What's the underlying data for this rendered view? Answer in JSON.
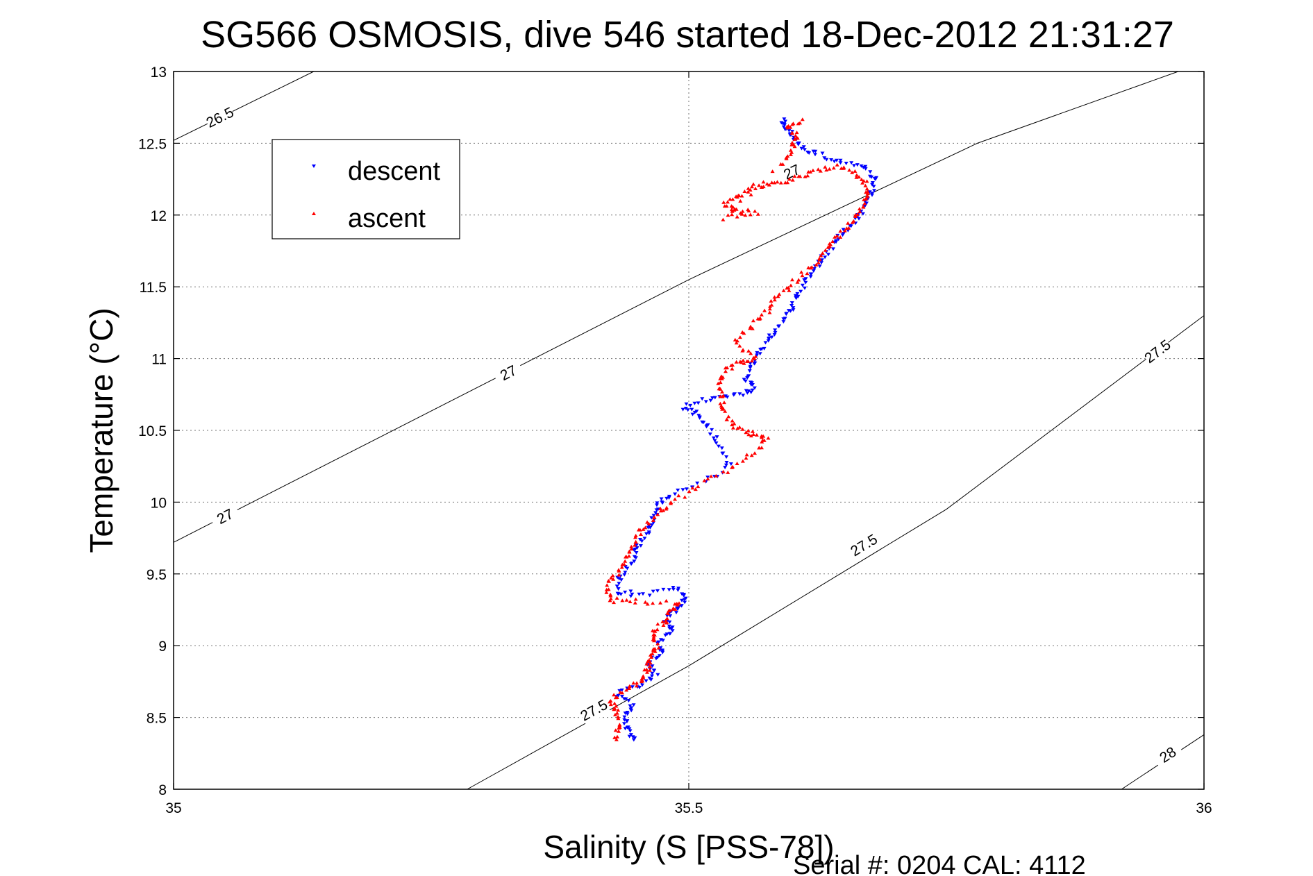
{
  "title": "SG566 OSMOSIS, dive 546 started 18-Dec-2012 21:31:27",
  "footer": "Serial #: 0204  CAL: 4112",
  "chart_data": {
    "type": "scatter",
    "title": "SG566 OSMOSIS, dive 546 started 18-Dec-2012 21:31:27",
    "xlabel": "Salinity (S [PSS-78])",
    "ylabel": "Temperature (°C)",
    "xlim": [
      35,
      36
    ],
    "ylim": [
      8,
      13
    ],
    "xticks": [
      35,
      35.5,
      36
    ],
    "xtick_labels": [
      "35",
      "35.5",
      "36"
    ],
    "yticks": [
      8,
      8.5,
      9,
      9.5,
      10,
      10.5,
      11,
      11.5,
      12,
      12.5,
      13
    ],
    "ytick_labels": [
      "8",
      "8.5",
      "9",
      "9.5",
      "10",
      "10.5",
      "11",
      "11.5",
      "12",
      "12.5",
      "13"
    ],
    "grid": true,
    "legend_position": "top-left",
    "isopycnals": [
      {
        "label": "26.5",
        "points": [
          [
            35.0,
            12.52
          ],
          [
            35.136,
            13.0
          ]
        ],
        "label_at": [
          [
            35.045,
            12.68
          ]
        ]
      },
      {
        "label": "27",
        "points": [
          [
            35.0,
            9.72
          ],
          [
            35.5,
            11.55
          ],
          [
            35.78,
            12.5
          ],
          [
            35.975,
            13.0
          ]
        ],
        "label_at": [
          [
            35.05,
            9.9
          ],
          [
            35.325,
            10.9
          ],
          [
            35.6,
            12.3
          ]
        ]
      },
      {
        "label": "27.5",
        "points": [
          [
            35.285,
            8.0
          ],
          [
            35.5,
            8.86
          ],
          [
            35.75,
            9.95
          ],
          [
            36.0,
            11.3
          ]
        ],
        "label_at": [
          [
            35.408,
            8.55
          ],
          [
            35.67,
            9.7
          ],
          [
            35.955,
            11.05
          ]
        ]
      },
      {
        "label": "28",
        "points": [
          [
            35.92,
            8.0
          ],
          [
            36.0,
            8.38
          ]
        ],
        "label_at": [
          [
            35.965,
            8.24
          ]
        ]
      }
    ],
    "series": [
      {
        "name": "descent",
        "color": "#0000ff",
        "marker": "triangle-down",
        "path": [
          [
            35.447,
            8.35
          ],
          [
            35.44,
            8.42
          ],
          [
            35.438,
            8.5
          ],
          [
            35.445,
            8.58
          ],
          [
            35.43,
            8.66
          ],
          [
            35.452,
            8.72
          ],
          [
            35.468,
            8.8
          ],
          [
            35.46,
            8.88
          ],
          [
            35.475,
            8.95
          ],
          [
            35.47,
            9.03
          ],
          [
            35.485,
            9.1
          ],
          [
            35.478,
            9.18
          ],
          [
            35.49,
            9.26
          ],
          [
            35.498,
            9.34
          ],
          [
            35.485,
            9.4
          ],
          [
            35.45,
            9.35
          ],
          [
            35.43,
            9.38
          ],
          [
            35.433,
            9.48
          ],
          [
            35.445,
            9.58
          ],
          [
            35.45,
            9.68
          ],
          [
            35.46,
            9.78
          ],
          [
            35.465,
            9.88
          ],
          [
            35.47,
            9.97
          ],
          [
            35.48,
            10.05
          ],
          [
            35.51,
            10.12
          ],
          [
            35.54,
            10.25
          ],
          [
            35.53,
            10.38
          ],
          [
            35.52,
            10.52
          ],
          [
            35.51,
            10.6
          ],
          [
            35.495,
            10.66
          ],
          [
            35.52,
            10.72
          ],
          [
            35.545,
            10.75
          ],
          [
            35.565,
            10.78
          ],
          [
            35.555,
            10.85
          ],
          [
            35.56,
            10.95
          ],
          [
            35.57,
            11.05
          ],
          [
            35.58,
            11.15
          ],
          [
            35.59,
            11.25
          ],
          [
            35.6,
            11.35
          ],
          [
            35.605,
            11.45
          ],
          [
            35.615,
            11.55
          ],
          [
            35.625,
            11.65
          ],
          [
            35.635,
            11.75
          ],
          [
            35.645,
            11.85
          ],
          [
            35.66,
            11.95
          ],
          [
            35.67,
            12.05
          ],
          [
            35.677,
            12.15
          ],
          [
            35.68,
            12.25
          ],
          [
            35.67,
            12.33
          ],
          [
            35.645,
            12.37
          ],
          [
            35.625,
            12.42
          ],
          [
            35.61,
            12.47
          ],
          [
            35.6,
            12.55
          ],
          [
            35.595,
            12.62
          ],
          [
            35.59,
            12.66
          ]
        ]
      },
      {
        "name": "ascent",
        "color": "#ff0000",
        "marker": "triangle-up",
        "path": [
          [
            35.43,
            8.35
          ],
          [
            35.432,
            8.45
          ],
          [
            35.43,
            8.55
          ],
          [
            35.425,
            8.62
          ],
          [
            35.44,
            8.7
          ],
          [
            35.455,
            8.76
          ],
          [
            35.46,
            8.84
          ],
          [
            35.462,
            8.92
          ],
          [
            35.47,
            9.0
          ],
          [
            35.465,
            9.08
          ],
          [
            35.475,
            9.16
          ],
          [
            35.48,
            9.23
          ],
          [
            35.49,
            9.3
          ],
          [
            35.45,
            9.31
          ],
          [
            35.425,
            9.32
          ],
          [
            35.42,
            9.42
          ],
          [
            35.432,
            9.52
          ],
          [
            35.44,
            9.62
          ],
          [
            35.447,
            9.72
          ],
          [
            35.455,
            9.82
          ],
          [
            35.47,
            9.92
          ],
          [
            35.485,
            10.0
          ],
          [
            35.51,
            10.12
          ],
          [
            35.54,
            10.24
          ],
          [
            35.565,
            10.35
          ],
          [
            35.575,
            10.45
          ],
          [
            35.56,
            10.48
          ],
          [
            35.545,
            10.52
          ],
          [
            35.535,
            10.62
          ],
          [
            35.532,
            10.72
          ],
          [
            35.53,
            10.82
          ],
          [
            35.535,
            10.92
          ],
          [
            35.55,
            10.98
          ],
          [
            35.565,
            11.0
          ],
          [
            35.545,
            11.1
          ],
          [
            35.56,
            11.22
          ],
          [
            35.575,
            11.32
          ],
          [
            35.585,
            11.42
          ],
          [
            35.6,
            11.52
          ],
          [
            35.615,
            11.62
          ],
          [
            35.63,
            11.72
          ],
          [
            35.64,
            11.82
          ],
          [
            35.655,
            11.92
          ],
          [
            35.665,
            12.02
          ],
          [
            35.672,
            12.12
          ],
          [
            35.672,
            12.22
          ],
          [
            35.66,
            12.3
          ],
          [
            35.64,
            12.34
          ],
          [
            35.62,
            12.3
          ],
          [
            35.6,
            12.25
          ],
          [
            35.58,
            12.22
          ],
          [
            35.565,
            12.2
          ],
          [
            35.55,
            12.14
          ],
          [
            35.535,
            12.08
          ],
          [
            35.545,
            12.03
          ],
          [
            35.565,
            12.02
          ],
          [
            35.535,
            11.98
          ],
          [
            35.59,
            12.35
          ],
          [
            35.6,
            12.45
          ],
          [
            35.605,
            12.55
          ],
          [
            35.595,
            12.62
          ],
          [
            35.612,
            12.66
          ]
        ]
      }
    ]
  }
}
